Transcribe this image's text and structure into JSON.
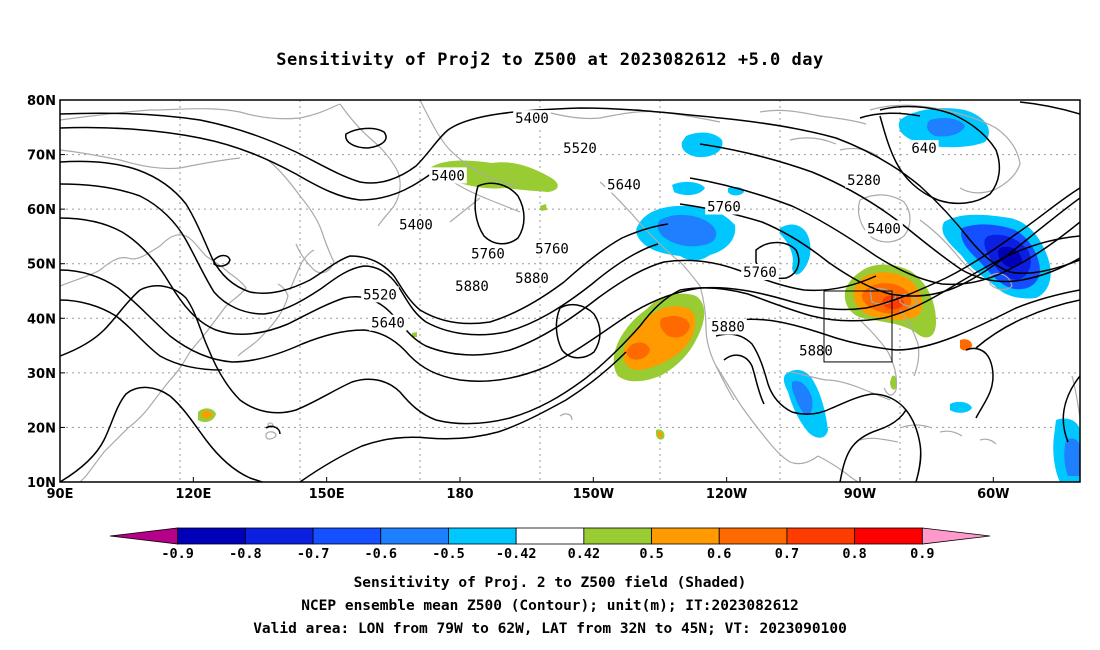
{
  "title": "Sensitivity of Proj2 to Z500 at 2023082612 +5.0 day",
  "lat_ticks": [
    "80N",
    "70N",
    "60N",
    "50N",
    "40N",
    "30N",
    "20N",
    "10N"
  ],
  "lon_ticks": [
    "90E",
    "120E",
    "150E",
    "180",
    "150W",
    "120W",
    "90W",
    "60W"
  ],
  "contour_labels": [
    {
      "text": "5400",
      "lon": -152,
      "lat": 76.5
    },
    {
      "text": "5520",
      "lon": -140,
      "lat": 71.0
    },
    {
      "text": "5640",
      "lon": -129,
      "lat": 64.3
    },
    {
      "text": "5280",
      "lon": -69,
      "lat": 65.2
    },
    {
      "text": "5400",
      "lon": -64,
      "lat": 56.3
    },
    {
      "text": "5400",
      "lon": -173,
      "lat": 66.0
    },
    {
      "text": "5400",
      "lon": -181,
      "lat": 57.0
    },
    {
      "text": "5520",
      "lon": -190,
      "lat": 44.2
    },
    {
      "text": "5640",
      "lon": -188,
      "lat": 39.0
    },
    {
      "text": "5760",
      "lon": -147,
      "lat": 52.6
    },
    {
      "text": "5880",
      "lon": -152,
      "lat": 47.2
    },
    {
      "text": "5760",
      "lon": -95,
      "lat": 48.3
    },
    {
      "text": "5880",
      "lon": -103,
      "lat": 38.3
    },
    {
      "text": "5880",
      "lon": -81,
      "lat": 33.9
    },
    {
      "text": "5760",
      "lon": -163,
      "lat": 51.7
    },
    {
      "text": "5880",
      "lon": -167,
      "lat": 45.7
    },
    {
      "text": "5760",
      "lon": -104,
      "lat": 60.3
    },
    {
      "text": "640",
      "lon": -54,
      "lat": 71.0
    }
  ],
  "colorbar": {
    "labels": [
      "-0.9",
      "-0.8",
      "-0.7",
      "-0.6",
      "-0.5",
      "-0.42",
      "0.42",
      "0.5",
      "0.6",
      "0.7",
      "0.8",
      "0.9"
    ],
    "colors": [
      "#b5008a",
      "#0000b8",
      "#0a1fe0",
      "#1450ff",
      "#1e80ff",
      "#00c8ff",
      "#ffffff",
      "#99cc33",
      "#ff9a00",
      "#ff6a00",
      "#ff3c00",
      "#ff0000",
      "#ff99cc"
    ]
  },
  "valid_area": {
    "lon_min": -79,
    "lon_max": -62,
    "lat_min": 32,
    "lat_max": 45
  },
  "captions": [
    "Sensitivity of Proj. 2 to Z500 field (Shaded)",
    "NCEP ensemble mean Z500 (Contour); unit(m); IT:2023082612",
    "Valid area: LON from 79W to 62W, LAT from 32N to 45N; VT: 2023090100"
  ]
}
